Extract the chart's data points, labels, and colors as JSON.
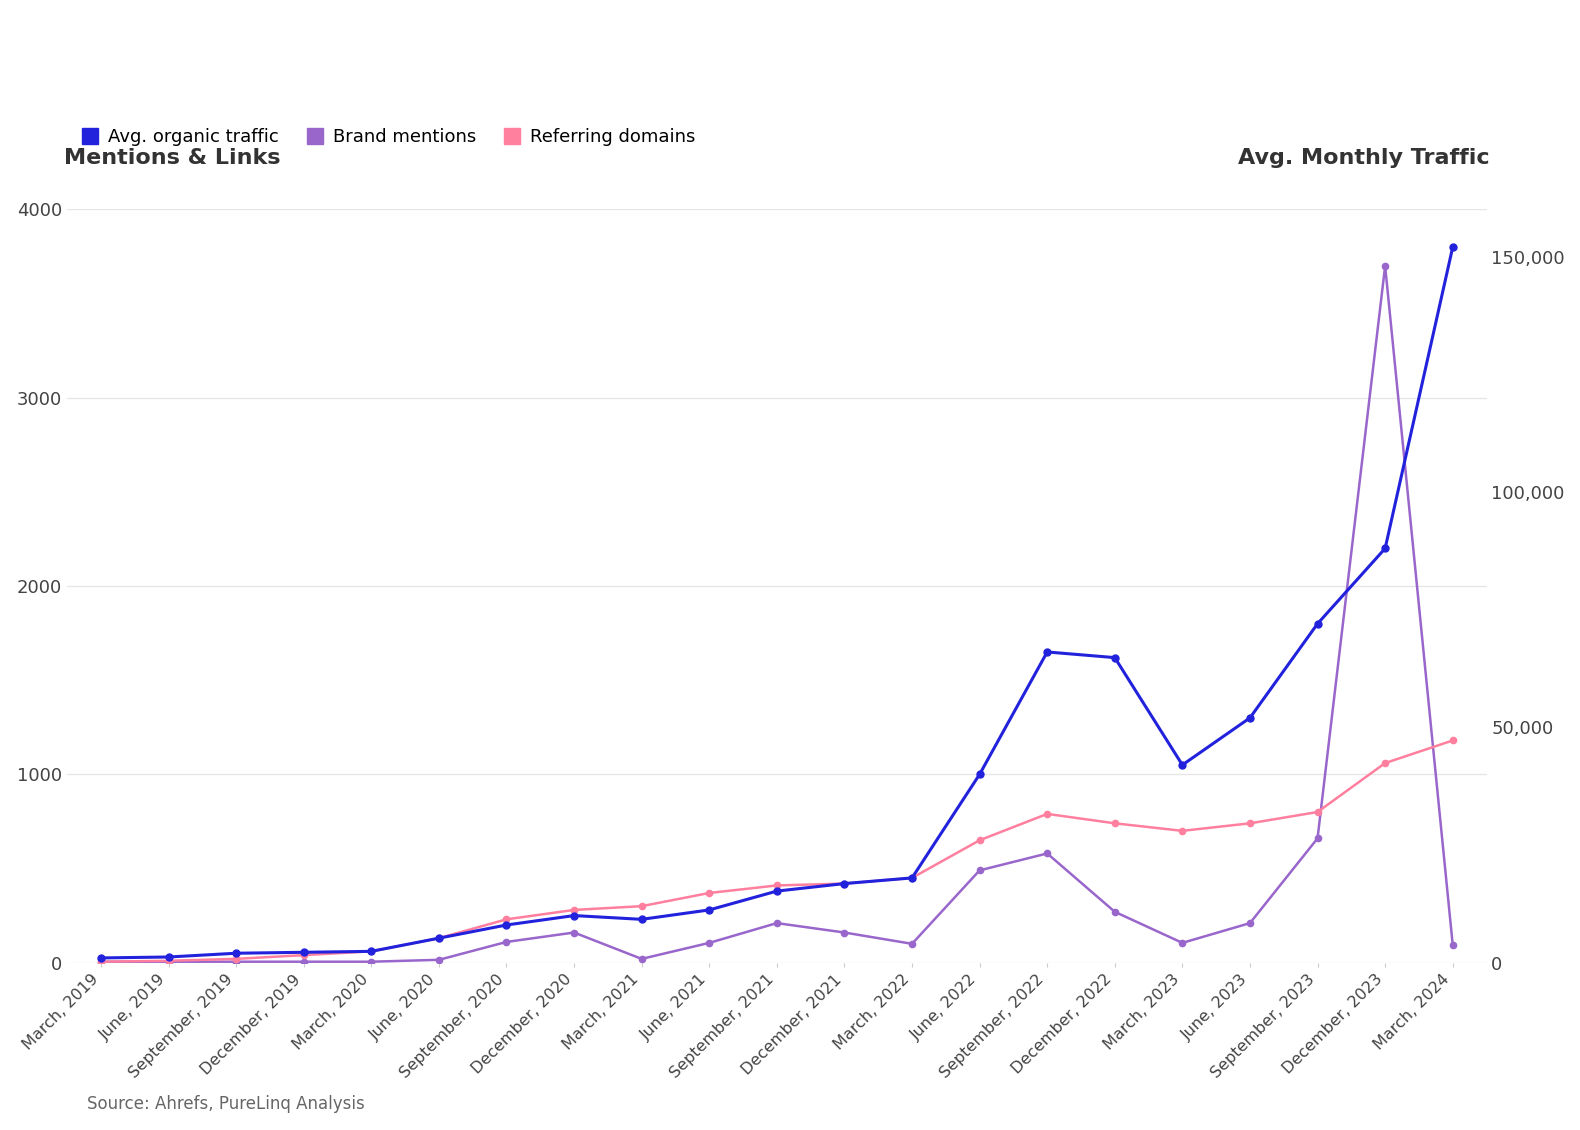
{
  "title_left": "Mentions & Links",
  "title_right": "Avg. Monthly Traffic",
  "source_text": "Source: Ahrefs, PureLinq Analysis",
  "legend_labels": [
    "Avg. organic traffic",
    "Brand mentions",
    "Referring domains"
  ],
  "organic_traffic_color": "#2222dd",
  "brand_mentions_color": "#9966cc",
  "referring_domains_color": "#ff7f9e",
  "x_labels": [
    "March, 2019",
    "June, 2019",
    "September, 2019",
    "December, 2019",
    "March, 2020",
    "June, 2020",
    "September, 2020",
    "December, 2020",
    "March, 2021",
    "June, 2021",
    "September, 2021",
    "December, 2021",
    "March, 2022",
    "June, 2022",
    "September, 2022",
    "December, 2022",
    "March, 2023",
    "June, 2023",
    "September, 2023",
    "December, 2023",
    "March, 2024"
  ],
  "avg_traffic_left": [
    25,
    30,
    50,
    55,
    60,
    130,
    200,
    250,
    230,
    280,
    380,
    420,
    450,
    1000,
    1650,
    1620,
    1050,
    1300,
    1800,
    2200,
    3800
  ],
  "brand_mentions_left": [
    5,
    5,
    5,
    5,
    5,
    15,
    110,
    160,
    20,
    105,
    210,
    160,
    100,
    490,
    580,
    270,
    105,
    210,
    660,
    3700,
    95
  ],
  "referring_domains_left": [
    5,
    10,
    20,
    40,
    60,
    130,
    230,
    280,
    300,
    370,
    410,
    420,
    450,
    650,
    790,
    740,
    700,
    740,
    800,
    1060,
    1180
  ],
  "left_ylim": [
    0,
    4000
  ],
  "left_yticks": [
    0,
    1000,
    2000,
    3000,
    4000
  ],
  "right_ylim": [
    0,
    160000
  ],
  "right_yticks": [
    0,
    50000,
    100000,
    150000
  ],
  "right_yticklabels": [
    "0",
    "50,000",
    "100,000",
    "150,000"
  ],
  "background_color": "#ffffff",
  "grid_color": "#e5e5e5"
}
